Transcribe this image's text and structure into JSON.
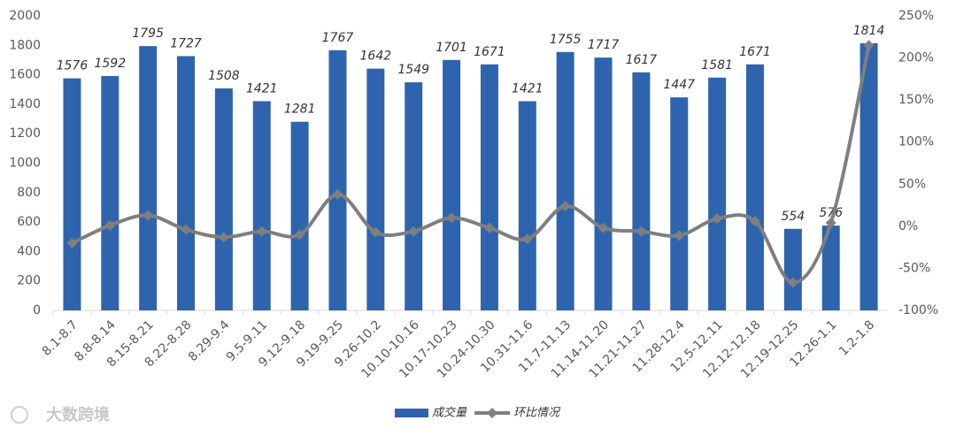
{
  "chart_data": {
    "type": "bar_line",
    "categories": [
      "8.1-8.7",
      "8.8-8.14",
      "8.15-8.21",
      "8.22-8.28",
      "8.29-9.4",
      "9.5-9.11",
      "9.12-9.18",
      "9.19-9.25",
      "9.26-10.2",
      "10.10-10.16",
      "10.17-10.23",
      "10.24-10.30",
      "10.31-11.6",
      "11.7-11.13",
      "11.14-11.20",
      "11.21-11.27",
      "11.28-12.4",
      "12.5-12.11",
      "12.12-12.18",
      "12.19-12.25",
      "12.26-1.1",
      "1.2-1.8"
    ],
    "series": [
      {
        "name": "成交量",
        "color": "#2e64ad",
        "values": [
          1576,
          1592,
          1795,
          1727,
          1508,
          1421,
          1281,
          1767,
          1642,
          1549,
          1701,
          1671,
          1421,
          1755,
          1717,
          1617,
          1447,
          1581,
          1671,
          554,
          576,
          1814
        ]
      },
      {
        "name": "环比情况",
        "color": "#7f7f7f",
        "axis": "y2",
        "values": [
          -20,
          1,
          13,
          -4,
          -13,
          -6,
          -10,
          38,
          -7,
          -6,
          10,
          -2,
          -15,
          24,
          -2,
          -6,
          -11,
          9,
          6,
          -67,
          4,
          215
        ]
      }
    ],
    "ylim": [
      0,
      2000
    ],
    "yticks": [
      0,
      200,
      400,
      600,
      800,
      1000,
      1200,
      1400,
      1600,
      1800,
      2000
    ],
    "y2lim": [
      -100,
      250
    ],
    "y2ticks": [
      {
        "value": -100,
        "label": "-100%"
      },
      {
        "value": -50,
        "label": "-50%"
      },
      {
        "value": 0,
        "label": "0%"
      },
      {
        "value": 50,
        "label": "50%"
      },
      {
        "value": 100,
        "label": "100%"
      },
      {
        "value": 150,
        "label": "150%"
      },
      {
        "value": 200,
        "label": "200%"
      },
      {
        "value": 250,
        "label": "250%"
      }
    ],
    "legend": "bottom",
    "watermark": "大数跨境"
  }
}
